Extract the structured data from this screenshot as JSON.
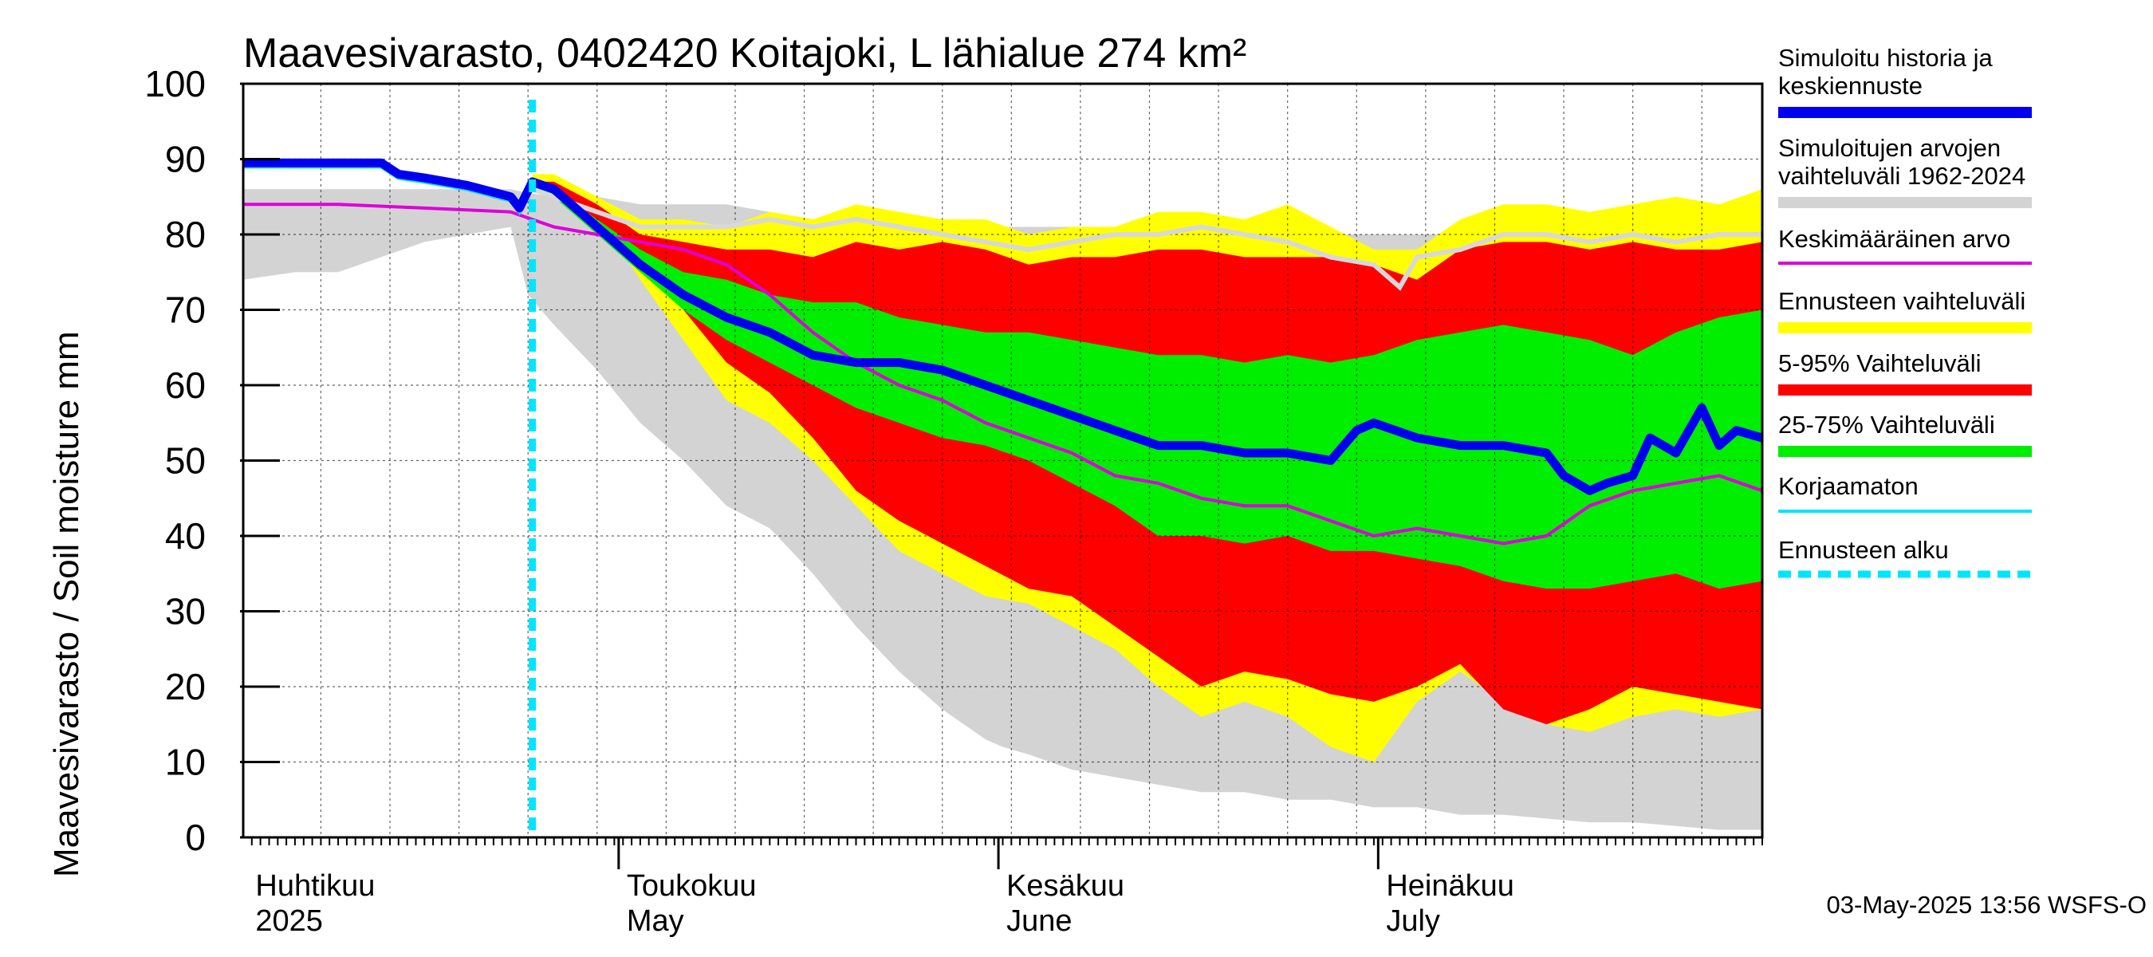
{
  "chart_data": {
    "type": "area",
    "title": "Maavesivarasto, 0402420 Koitajoki, L lähialue 274 km²",
    "ylabel": "Maavesivarasto / Soil moisture   mm",
    "ylim": [
      0,
      100
    ],
    "yticks": [
      "0",
      "10",
      "20",
      "30",
      "40",
      "50",
      "60",
      "70",
      "80",
      "90",
      "100"
    ],
    "x_unit": "days since 2025-04-01",
    "xlim": [
      -1,
      175
    ],
    "forecast_start_day": 32.5,
    "month_labels": [
      {
        "day": 0,
        "fi": "Huhtikuu",
        "en": "2025"
      },
      {
        "day": 43,
        "fi": "Toukokuu",
        "en": "May"
      },
      {
        "day": 87,
        "fi": "Kesäkuu",
        "en": "June"
      },
      {
        "day": 131,
        "fi": "Heinäkuu",
        "en": "July"
      }
    ],
    "timestamp": "03-May-2025 13:56 WSFS-O",
    "legend": {
      "history_1": "Simuloitu historia ja",
      "history_2": "keskiennuste",
      "range_1": "Simuloitujen arvojen",
      "range_2": "vaihteluväli 1962-2024",
      "mean": "Keskimääräinen arvo",
      "forecast_range": "Ennusteen vaihteluväli",
      "p5_95": "5-95% Vaihteluväli",
      "p25_75": "25-75% Vaihteluväli",
      "uncorrected": "Korjaamaton",
      "forecast_start": "Ennusteen alku"
    },
    "colors": {
      "history": "#0000ee",
      "hist_range": "#d3d3d3",
      "mean": "#dd00dd",
      "forecast_range": "#ffff00",
      "p5_95": "#ff0000",
      "p25_75": "#00ee00",
      "uncorrected": "#00e5ff",
      "forecast_start": "#00e5ff",
      "max_line": "#d8d8d8"
    },
    "series": {
      "hist_range": {
        "x": [
          -1,
          5,
          10,
          20,
          30,
          32,
          35,
          40,
          45,
          50,
          55,
          60,
          65,
          70,
          75,
          80,
          85,
          87,
          90,
          95,
          100,
          105,
          110,
          115,
          120,
          125,
          130,
          135,
          140,
          145,
          150,
          155,
          160,
          165,
          170,
          175
        ],
        "upper": [
          86,
          86,
          86,
          86,
          86,
          85.5,
          85,
          85,
          84,
          84,
          84,
          83,
          82,
          82,
          82,
          82,
          81,
          81,
          81,
          81,
          81,
          81,
          81,
          81,
          80,
          80,
          80,
          80,
          80,
          80,
          80,
          80,
          80,
          80,
          80,
          80
        ],
        "lower": [
          74,
          75,
          75,
          79,
          81,
          72,
          68,
          62,
          55,
          50,
          44,
          41,
          35,
          28,
          22,
          17,
          13,
          12,
          11,
          9,
          8,
          7,
          6,
          6,
          5,
          5,
          4,
          4,
          3,
          3,
          2.5,
          2,
          2,
          1.5,
          1,
          1
        ]
      },
      "forecast_range": {
        "x": [
          32.5,
          35,
          40,
          45,
          50,
          55,
          60,
          65,
          70,
          75,
          80,
          85,
          90,
          95,
          100,
          105,
          110,
          115,
          120,
          125,
          130,
          135,
          140,
          145,
          150,
          155,
          160,
          165,
          170,
          175
        ],
        "upper": [
          88,
          88,
          85,
          82,
          82,
          81,
          83,
          82,
          84,
          83,
          82,
          82,
          80,
          81,
          81,
          83,
          83,
          82,
          84,
          81,
          78,
          78,
          82,
          84,
          84,
          83,
          84,
          85,
          84,
          86
        ],
        "lower": [
          87,
          86,
          83,
          74,
          66,
          58,
          55,
          50,
          44,
          38,
          35,
          32,
          31,
          28,
          25,
          20,
          16,
          18,
          16,
          12,
          10,
          18,
          22,
          18,
          15,
          14,
          16,
          17,
          16,
          17
        ]
      },
      "p5_95": {
        "x": [
          32.5,
          35,
          40,
          45,
          50,
          55,
          60,
          65,
          70,
          75,
          80,
          85,
          90,
          95,
          100,
          105,
          110,
          115,
          120,
          125,
          130,
          135,
          140,
          145,
          150,
          155,
          160,
          165,
          170,
          175
        ],
        "upper": [
          87,
          87,
          84,
          80,
          79,
          78,
          78,
          77,
          79,
          78,
          79,
          78,
          76,
          77,
          77,
          78,
          78,
          77,
          77,
          77,
          76,
          74,
          78,
          79,
          79,
          78,
          79,
          78,
          78,
          79
        ],
        "lower": [
          86,
          85,
          81,
          76,
          70,
          63,
          59,
          53,
          46,
          42,
          39,
          36,
          33,
          32,
          28,
          24,
          20,
          22,
          21,
          19,
          18,
          20,
          23,
          17,
          15,
          17,
          20,
          19,
          18,
          17
        ]
      },
      "p25_75": {
        "x": [
          32.5,
          35,
          40,
          45,
          50,
          55,
          60,
          65,
          70,
          75,
          80,
          85,
          90,
          95,
          100,
          105,
          110,
          115,
          120,
          125,
          130,
          135,
          140,
          145,
          150,
          155,
          160,
          165,
          170,
          175
        ],
        "upper": [
          87,
          86,
          82,
          78,
          75,
          74,
          72,
          71,
          71,
          69,
          68,
          67,
          67,
          66,
          65,
          64,
          64,
          63,
          64,
          63,
          64,
          66,
          67,
          68,
          67,
          66,
          64,
          67,
          69,
          70
        ],
        "lower": [
          86,
          85,
          80,
          75,
          70,
          66,
          63,
          60,
          57,
          55,
          53,
          52,
          50,
          47,
          44,
          40,
          40,
          39,
          40,
          38,
          38,
          37,
          36,
          34,
          33,
          33,
          34,
          35,
          33,
          34
        ]
      },
      "max_line": {
        "x": [
          32.5,
          35,
          40,
          45,
          50,
          55,
          60,
          65,
          70,
          75,
          80,
          85,
          90,
          95,
          100,
          105,
          110,
          115,
          120,
          125,
          130,
          133,
          135,
          140,
          145,
          150,
          155,
          160,
          165,
          170,
          175
        ],
        "y": [
          86,
          85,
          83,
          81,
          81,
          81,
          82,
          81,
          82,
          81,
          80,
          79,
          78,
          79,
          80,
          80,
          81,
          80,
          79,
          77,
          76,
          73,
          77,
          78,
          80,
          80,
          79,
          80,
          79,
          80,
          80
        ]
      },
      "mean": {
        "x": [
          -1,
          10,
          20,
          30,
          35,
          40,
          45,
          50,
          55,
          60,
          65,
          70,
          75,
          80,
          85,
          90,
          95,
          100,
          105,
          110,
          115,
          120,
          125,
          130,
          135,
          140,
          145,
          150,
          155,
          160,
          165,
          170,
          175
        ],
        "y": [
          84,
          84,
          83.5,
          83,
          81,
          80,
          79,
          78,
          76,
          72,
          67,
          63,
          60,
          58,
          55,
          53,
          51,
          48,
          47,
          45,
          44,
          44,
          42,
          40,
          41,
          40,
          39,
          40,
          44,
          46,
          47,
          48,
          46
        ]
      },
      "history": {
        "x": [
          -1,
          5,
          10,
          15,
          17,
          20,
          25,
          30,
          31,
          32.5,
          35,
          40,
          45,
          50,
          55,
          60,
          65,
          70,
          75,
          80,
          85,
          90,
          95,
          100,
          105,
          110,
          115,
          120,
          125,
          128,
          130,
          135,
          140,
          145,
          150,
          152,
          155,
          157,
          160,
          162,
          165,
          168,
          170,
          172,
          175
        ],
        "y": [
          89.5,
          89.5,
          89.5,
          89.5,
          88,
          87.5,
          86.5,
          85,
          83.5,
          87,
          86,
          81,
          76,
          72,
          69,
          67,
          64,
          63,
          63,
          62,
          60,
          58,
          56,
          54,
          52,
          52,
          51,
          51,
          50,
          54,
          55,
          53,
          52,
          52,
          51,
          48,
          46,
          47,
          48,
          53,
          51,
          57,
          52,
          54,
          53
        ]
      },
      "uncorrected": {
        "x": [
          -1,
          5,
          10,
          15,
          17,
          20,
          25,
          30,
          31,
          32.5
        ],
        "y": [
          89,
          89,
          89,
          89,
          87.5,
          87,
          86,
          84.5,
          83,
          86.5
        ]
      }
    }
  }
}
